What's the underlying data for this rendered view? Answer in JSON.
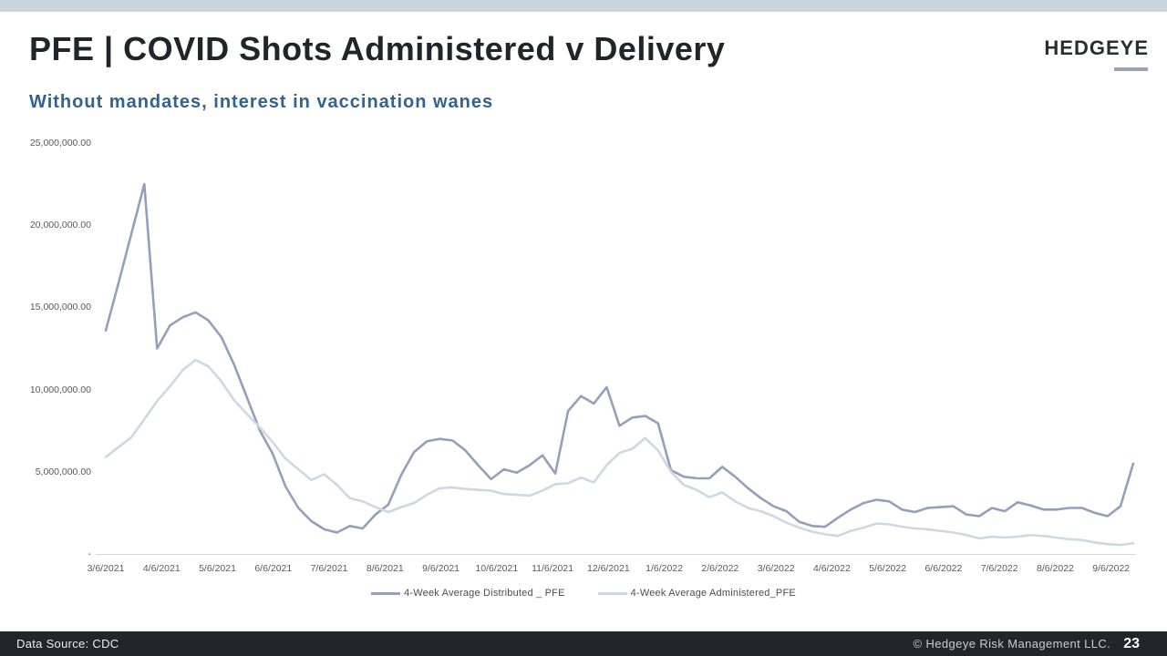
{
  "slide": {
    "title": "PFE | COVID Shots Administered v Delivery",
    "subtitle": "Without mandates, interest in vaccination wanes",
    "logo_text": "HEDGEYE",
    "footer": {
      "data_source": "Data Source: CDC",
      "copyright": "© Hedgeye Risk Management LLC.",
      "page_number": "23"
    }
  },
  "colors": {
    "top_accent_bar": "#c8d5dd",
    "title_text": "#212529",
    "subtitle_text": "#34618f",
    "axis_text": "#595959",
    "axis_line": "#d6d6d6",
    "distributed_line": "#93a0bc",
    "administered_line": "#ccd9e3",
    "footer_background": "#232629",
    "logo_underline": "#98a3b6"
  },
  "chart_data": {
    "type": "line",
    "title": "",
    "xlabel": "",
    "ylabel": "",
    "ylim": [
      0,
      25000000
    ],
    "grid": false,
    "legend_position": "bottom",
    "y_tick_values": [
      25000000,
      20000000,
      15000000,
      10000000,
      5000000,
      0
    ],
    "y_tick_labels": [
      "25,000,000.00",
      "20,000,000.00",
      "15,000,000.00",
      "10,000,000.00",
      "5,000,000.00",
      "-"
    ],
    "x_tick_labels": [
      "3/6/2021",
      "4/6/2021",
      "5/6/2021",
      "6/6/2021",
      "7/6/2021",
      "8/6/2021",
      "9/6/2021",
      "10/6/2021",
      "11/6/2021",
      "12/6/2021",
      "1/6/2022",
      "2/6/2022",
      "3/6/2022",
      "4/6/2022",
      "5/6/2022",
      "6/6/2022",
      "7/6/2022",
      "8/6/2022",
      "9/6/2022"
    ],
    "x": [
      "3/6/2021",
      "3/13/2021",
      "3/20/2021",
      "3/27/2021",
      "4/3/2021",
      "4/10/2021",
      "4/17/2021",
      "4/24/2021",
      "5/1/2021",
      "5/8/2021",
      "5/15/2021",
      "5/22/2021",
      "5/29/2021",
      "6/5/2021",
      "6/12/2021",
      "6/19/2021",
      "6/26/2021",
      "7/3/2021",
      "7/10/2021",
      "7/17/2021",
      "7/24/2021",
      "7/31/2021",
      "8/7/2021",
      "8/14/2021",
      "8/21/2021",
      "8/28/2021",
      "9/4/2021",
      "9/11/2021",
      "9/18/2021",
      "9/25/2021",
      "10/2/2021",
      "10/9/2021",
      "10/16/2021",
      "10/23/2021",
      "10/30/2021",
      "11/6/2021",
      "11/13/2021",
      "11/20/2021",
      "11/27/2021",
      "12/4/2021",
      "12/11/2021",
      "12/18/2021",
      "12/25/2021",
      "1/1/2022",
      "1/8/2022",
      "1/15/2022",
      "1/22/2022",
      "1/29/2022",
      "2/5/2022",
      "2/12/2022",
      "2/19/2022",
      "2/26/2022",
      "3/5/2022",
      "3/12/2022",
      "3/19/2022",
      "3/26/2022",
      "4/2/2022",
      "4/9/2022",
      "4/16/2022",
      "4/23/2022",
      "4/30/2022",
      "5/7/2022",
      "5/14/2022",
      "5/21/2022",
      "5/28/2022",
      "6/4/2022",
      "6/11/2022",
      "6/18/2022",
      "6/25/2022",
      "7/2/2022",
      "7/9/2022",
      "7/16/2022",
      "7/23/2022",
      "7/30/2022",
      "8/6/2022",
      "8/13/2022",
      "8/20/2022",
      "8/27/2022",
      "9/3/2022",
      "9/10/2022",
      "9/17/2022"
    ],
    "series": [
      {
        "name": "4-Week Average Distributed _ PFE",
        "data_name": "distributed-line",
        "color": "#93a0bc",
        "values": [
          13600000,
          16500000,
          19500000,
          22500000,
          12500000,
          13900000,
          14400000,
          14700000,
          14200000,
          13200000,
          11500000,
          9500000,
          7500000,
          6100000,
          4100000,
          2800000,
          2000000,
          1500000,
          1300000,
          1700000,
          1550000,
          2400000,
          3000000,
          4800000,
          6200000,
          6850000,
          7000000,
          6900000,
          6300000,
          5400000,
          4550000,
          5150000,
          4950000,
          5400000,
          6000000,
          4900000,
          8700000,
          9600000,
          9150000,
          10150000,
          7800000,
          8300000,
          8400000,
          7950000,
          5100000,
          4700000,
          4600000,
          4600000,
          5300000,
          4700000,
          4000000,
          3400000,
          2900000,
          2600000,
          1950000,
          1700000,
          1650000,
          2200000,
          2700000,
          3100000,
          3300000,
          3200000,
          2700000,
          2550000,
          2800000,
          2850000,
          2900000,
          2400000,
          2300000,
          2800000,
          2600000,
          3150000,
          2950000,
          2700000,
          2700000,
          2800000,
          2800000,
          2500000,
          2300000,
          2900000,
          5500000
        ]
      },
      {
        "name": "4-Week Average Administered_PFE",
        "data_name": "administered-line",
        "color": "#ccd9e3",
        "values": [
          5900000,
          6500000,
          7100000,
          8200000,
          9300000,
          10200000,
          11200000,
          11800000,
          11400000,
          10500000,
          9350000,
          8500000,
          7700000,
          6800000,
          5800000,
          5150000,
          4500000,
          4850000,
          4200000,
          3400000,
          3200000,
          2850000,
          2550000,
          2850000,
          3100000,
          3600000,
          4000000,
          4050000,
          3950000,
          3900000,
          3850000,
          3650000,
          3600000,
          3550000,
          3850000,
          4250000,
          4300000,
          4650000,
          4350000,
          5400000,
          6150000,
          6400000,
          7050000,
          6300000,
          5000000,
          4200000,
          3900000,
          3450000,
          3750000,
          3200000,
          2800000,
          2600000,
          2300000,
          1900000,
          1600000,
          1350000,
          1200000,
          1100000,
          1400000,
          1600000,
          1850000,
          1800000,
          1650000,
          1550000,
          1500000,
          1400000,
          1300000,
          1150000,
          950000,
          1050000,
          1000000,
          1050000,
          1150000,
          1100000,
          1000000,
          900000,
          850000,
          700000,
          600000,
          550000,
          650000
        ]
      }
    ]
  }
}
